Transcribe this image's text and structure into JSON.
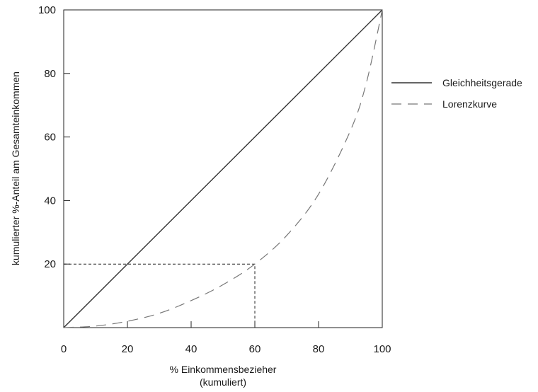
{
  "chart_data": {
    "type": "line",
    "x_ticks": [
      "0",
      "20",
      "40",
      "60",
      "80",
      "100"
    ],
    "y_ticks": [
      "20",
      "40",
      "60",
      "80",
      "100"
    ],
    "xlim": [
      0,
      100
    ],
    "ylim": [
      0,
      100
    ],
    "xlabel_line1": "% Einkommensbezieher",
    "xlabel_line2": "(kumuliert)",
    "ylabel": "kumulierter %-Anteil am Gesamteinkommen",
    "legend_position": "right",
    "series": [
      {
        "name": "Gleichheitsgerade",
        "style": "solid",
        "color": "#333333",
        "x": [
          0,
          100
        ],
        "y": [
          0,
          100
        ]
      },
      {
        "name": "Lorenzkurve",
        "style": "dashed",
        "color": "#777777",
        "x": [
          0,
          10,
          20,
          30,
          40,
          50,
          60,
          70,
          80,
          90,
          95,
          100
        ],
        "y": [
          0,
          0.5,
          2,
          4.5,
          8.5,
          13.5,
          20,
          29,
          42,
          62,
          77,
          100
        ]
      }
    ],
    "annotation": {
      "style": "dashed",
      "x": 60,
      "y": 20
    }
  }
}
